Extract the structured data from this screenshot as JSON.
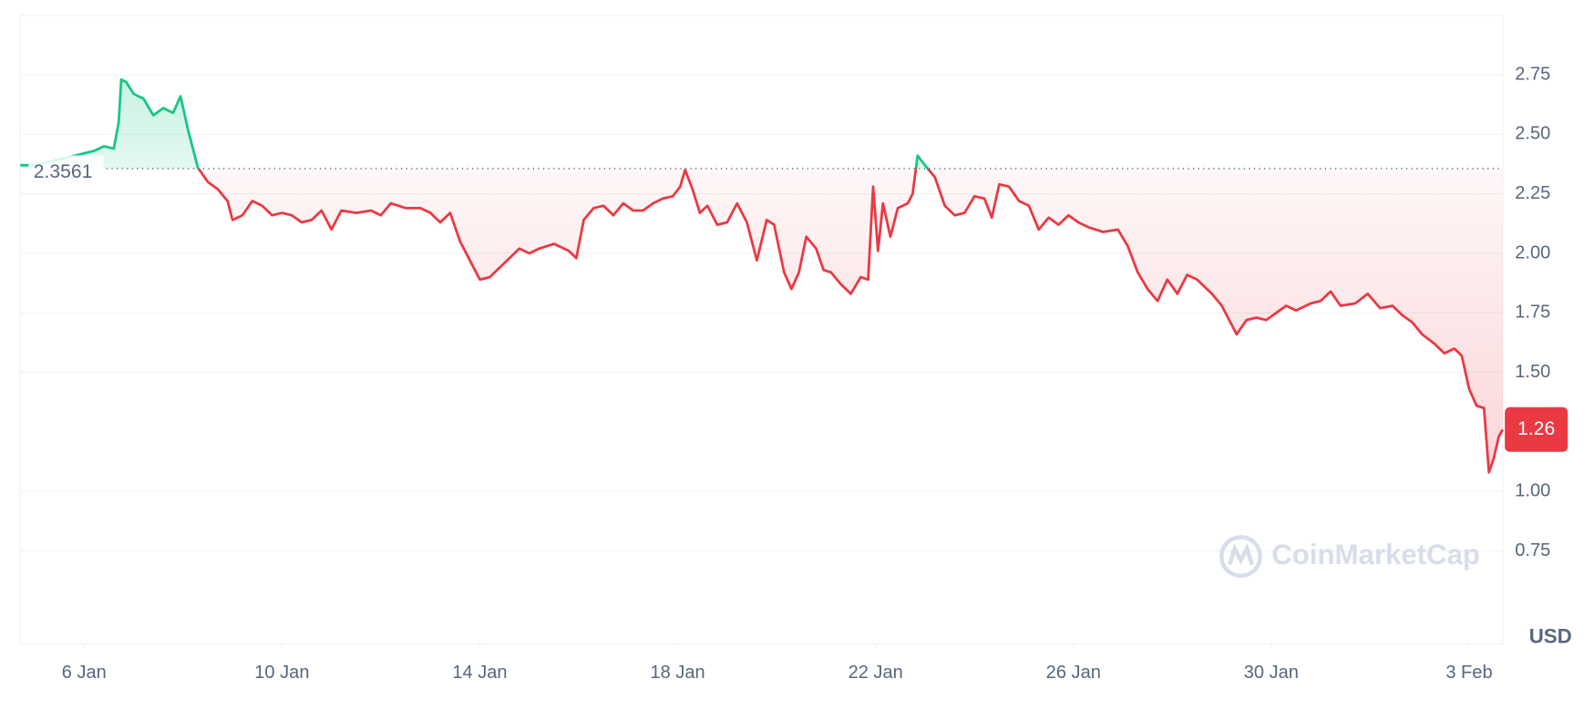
{
  "chart_data": {
    "type": "line",
    "x": [
      4.71,
      5.0,
      6.2,
      6.4,
      6.6,
      6.7,
      6.75,
      6.85,
      7.0,
      7.2,
      7.4,
      7.6,
      7.8,
      7.95,
      8.1,
      8.3,
      8.5,
      8.7,
      8.9,
      9.0,
      9.2,
      9.4,
      9.6,
      9.8,
      10.0,
      10.2,
      10.4,
      10.6,
      10.8,
      11.0,
      11.2,
      11.5,
      11.8,
      12.0,
      12.2,
      12.5,
      12.8,
      13.0,
      13.2,
      13.4,
      13.6,
      13.8,
      14.0,
      14.2,
      14.4,
      14.6,
      14.8,
      15.0,
      15.2,
      15.5,
      15.8,
      15.95,
      16.1,
      16.3,
      16.5,
      16.7,
      16.9,
      17.1,
      17.3,
      17.5,
      17.7,
      17.9,
      18.05,
      18.15,
      18.3,
      18.45,
      18.6,
      18.8,
      19.0,
      19.2,
      19.4,
      19.6,
      19.8,
      19.95,
      20.15,
      20.3,
      20.45,
      20.6,
      20.8,
      20.95,
      21.1,
      21.3,
      21.5,
      21.7,
      21.85,
      21.95,
      22.05,
      22.15,
      22.3,
      22.45,
      22.65,
      22.75,
      22.85,
      23.0,
      23.2,
      23.4,
      23.6,
      23.8,
      24.0,
      24.2,
      24.35,
      24.5,
      24.7,
      24.9,
      25.1,
      25.3,
      25.5,
      25.7,
      25.9,
      26.1,
      26.3,
      26.6,
      26.9,
      27.1,
      27.3,
      27.5,
      27.7,
      27.9,
      28.1,
      28.3,
      28.5,
      28.8,
      29.0,
      29.2,
      29.3,
      29.5,
      29.7,
      29.9,
      30.1,
      30.3,
      30.5,
      30.8,
      31.0,
      31.2,
      31.4,
      31.7,
      31.95,
      32.2,
      32.45,
      32.65,
      32.85,
      33.05,
      33.3,
      33.5,
      33.7,
      33.85,
      34.0,
      34.15,
      34.3,
      34.4,
      34.5,
      34.6,
      34.68
    ],
    "values": [
      2.37,
      2.37,
      2.43,
      2.45,
      2.44,
      2.55,
      2.73,
      2.72,
      2.67,
      2.65,
      2.58,
      2.61,
      2.59,
      2.66,
      2.52,
      2.36,
      2.3,
      2.27,
      2.22,
      2.14,
      2.16,
      2.22,
      2.2,
      2.16,
      2.17,
      2.16,
      2.13,
      2.14,
      2.18,
      2.1,
      2.18,
      2.17,
      2.18,
      2.16,
      2.21,
      2.19,
      2.19,
      2.17,
      2.13,
      2.17,
      2.05,
      1.97,
      1.89,
      1.9,
      1.94,
      1.98,
      2.02,
      2.0,
      2.02,
      2.04,
      2.01,
      1.98,
      2.14,
      2.19,
      2.2,
      2.16,
      2.21,
      2.18,
      2.18,
      2.21,
      2.23,
      2.24,
      2.28,
      2.35,
      2.27,
      2.17,
      2.2,
      2.12,
      2.13,
      2.21,
      2.13,
      1.97,
      2.14,
      2.12,
      1.92,
      1.85,
      1.92,
      2.07,
      2.02,
      1.93,
      1.92,
      1.87,
      1.83,
      1.9,
      1.89,
      2.28,
      2.01,
      2.21,
      2.07,
      2.19,
      2.21,
      2.25,
      2.41,
      2.37,
      2.32,
      2.2,
      2.16,
      2.17,
      2.24,
      2.23,
      2.15,
      2.29,
      2.28,
      2.22,
      2.2,
      2.1,
      2.15,
      2.12,
      2.16,
      2.13,
      2.11,
      2.09,
      2.1,
      2.03,
      1.92,
      1.85,
      1.8,
      1.89,
      1.83,
      1.91,
      1.89,
      1.83,
      1.78,
      1.7,
      1.66,
      1.72,
      1.73,
      1.72,
      1.75,
      1.78,
      1.76,
      1.79,
      1.8,
      1.84,
      1.78,
      1.79,
      1.83,
      1.77,
      1.78,
      1.74,
      1.71,
      1.66,
      1.62,
      1.58,
      1.6,
      1.57,
      1.43,
      1.36,
      1.35,
      1.08,
      1.14,
      1.23,
      1.26
    ],
    "up_color": "#16c784",
    "down_color": "#ea3943",
    "reference_price": 2.3561,
    "current_price": 1.26,
    "xlim": [
      4.71,
      34.68
    ],
    "xticks": [
      {
        "value": 6,
        "label": "6 Jan"
      },
      {
        "value": 10,
        "label": "10 Jan"
      },
      {
        "value": 14,
        "label": "14 Jan"
      },
      {
        "value": 18,
        "label": "18 Jan"
      },
      {
        "value": 22,
        "label": "22 Jan"
      },
      {
        "value": 26,
        "label": "26 Jan"
      },
      {
        "value": 30,
        "label": "30 Jan"
      },
      {
        "value": 34,
        "label": "3 Feb"
      }
    ],
    "ylim": [
      0.36,
      3.0
    ],
    "yticks": [
      0.75,
      {
        "value": 1,
        "label": "1.00"
      },
      {
        "value": 1.5,
        "label": "1.50"
      },
      1.75,
      {
        "value": 2,
        "label": "2.00"
      },
      2.25,
      {
        "value": 2.5,
        "label": "2.50"
      },
      2.75
    ],
    "grid": true,
    "currency_label": "USD",
    "watermark": "CoinMarketCap"
  }
}
